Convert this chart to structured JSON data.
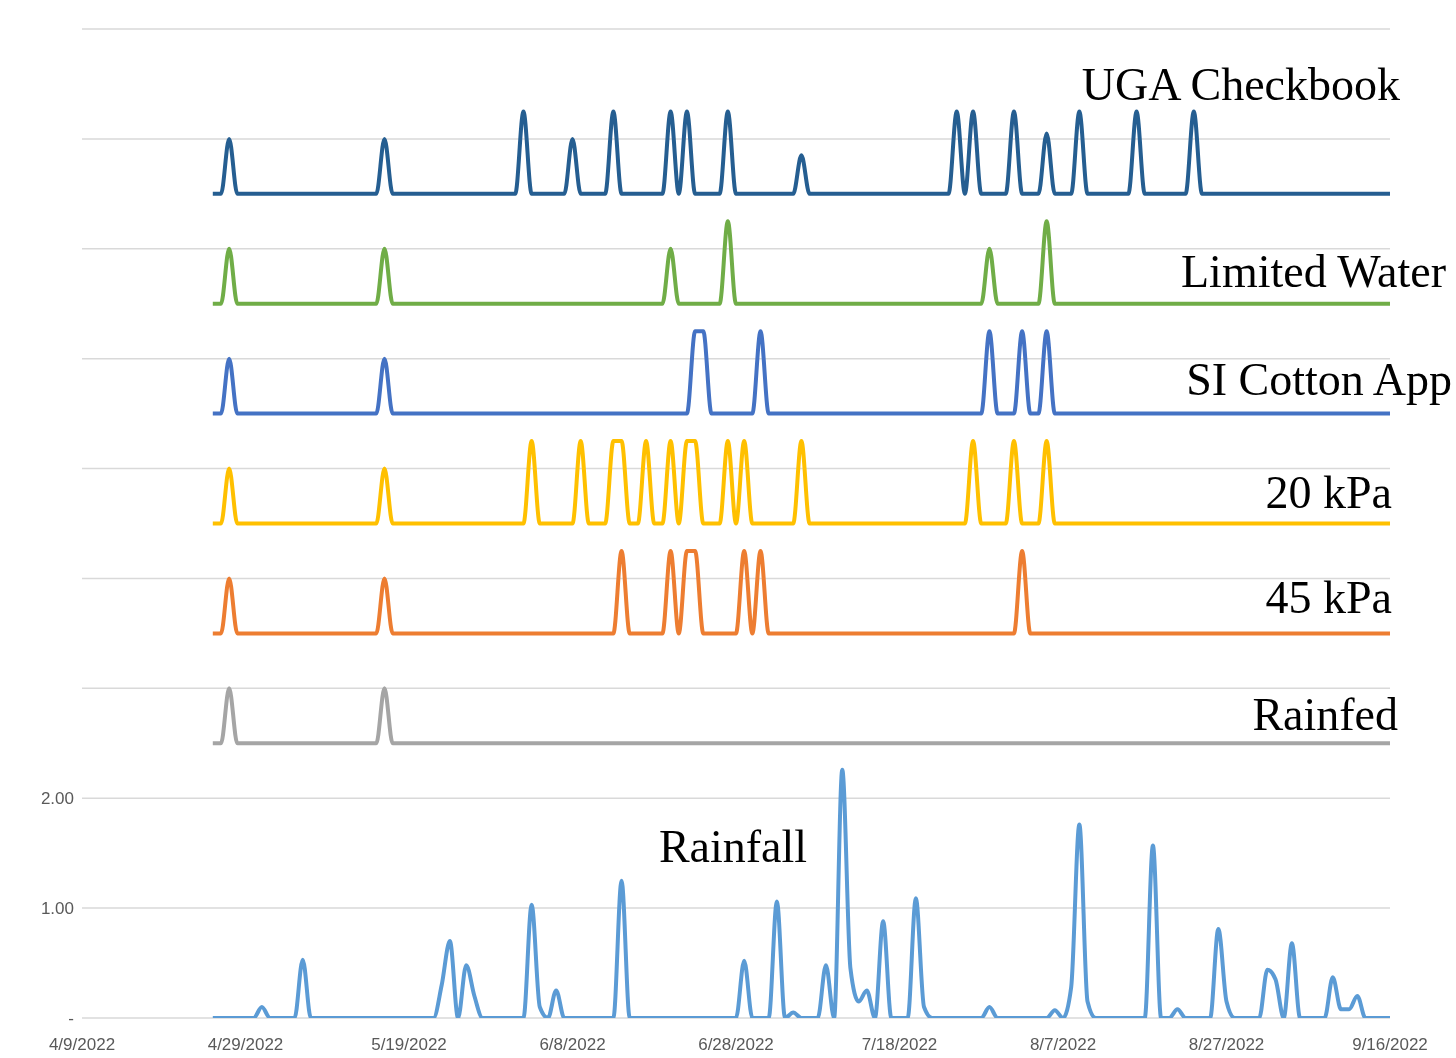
{
  "chart_data": {
    "type": "line",
    "xlim": [
      "2022-04-09",
      "2022-09-16"
    ],
    "xticks": [
      {
        "value": "2022-04-09",
        "label": "4/9/2022"
      },
      {
        "value": "2022-04-29",
        "label": "4/29/2022"
      },
      {
        "value": "2022-05-19",
        "label": "5/19/2022"
      },
      {
        "value": "2022-06-08",
        "label": "6/8/2022"
      },
      {
        "value": "2022-06-28",
        "label": "6/28/2022"
      },
      {
        "value": "2022-07-18",
        "label": "7/18/2022"
      },
      {
        "value": "2022-08-07",
        "label": "8/7/2022"
      },
      {
        "value": "2022-08-27",
        "label": "8/27/2022"
      },
      {
        "value": "2022-09-16",
        "label": "9/16/2022"
      }
    ],
    "ylim": [
      0,
      9
    ],
    "yticks": [
      {
        "value": 0,
        "label": "-"
      },
      {
        "value": 1,
        "label": "1.00"
      },
      {
        "value": 2,
        "label": "2.00"
      },
      {
        "value": 3,
        "label": null
      },
      {
        "value": 4,
        "label": null
      },
      {
        "value": 5,
        "label": null
      },
      {
        "value": 6,
        "label": null
      },
      {
        "value": 7,
        "label": null
      },
      {
        "value": 8,
        "label": null
      },
      {
        "value": 9,
        "label": null
      }
    ],
    "grid": "y",
    "marker": "none",
    "line_style": "solid",
    "series": [
      {
        "name": "UGA Checkbook",
        "color": "#255e91",
        "x": [
          "2022-04-25",
          "2022-04-26",
          "2022-04-27",
          "2022-04-28",
          "2022-05-15",
          "2022-05-16",
          "2022-05-17",
          "2022-06-01",
          "2022-06-02",
          "2022-06-03",
          "2022-06-07",
          "2022-06-08",
          "2022-06-09",
          "2022-06-12",
          "2022-06-13",
          "2022-06-14",
          "2022-06-19",
          "2022-06-20",
          "2022-06-21",
          "2022-06-22",
          "2022-06-23",
          "2022-06-26",
          "2022-06-27",
          "2022-06-28",
          "2022-07-05",
          "2022-07-06",
          "2022-07-07",
          "2022-07-24",
          "2022-07-25",
          "2022-07-26",
          "2022-07-27",
          "2022-07-28",
          "2022-07-31",
          "2022-08-01",
          "2022-08-02",
          "2022-08-04",
          "2022-08-05",
          "2022-08-06",
          "2022-08-08",
          "2022-08-09",
          "2022-08-10",
          "2022-08-15",
          "2022-08-16",
          "2022-08-17",
          "2022-08-22",
          "2022-08-23",
          "2022-08-24",
          "2022-09-16"
        ],
        "values": [
          7.5,
          7.5,
          8.0,
          7.5,
          7.5,
          8.0,
          7.5,
          7.5,
          8.25,
          7.5,
          7.5,
          8.0,
          7.5,
          7.5,
          8.25,
          7.5,
          7.5,
          8.25,
          7.5,
          8.25,
          7.5,
          7.5,
          8.25,
          7.5,
          7.5,
          7.85,
          7.5,
          7.5,
          8.25,
          7.5,
          8.25,
          7.5,
          7.5,
          8.25,
          7.5,
          7.5,
          8.05,
          7.5,
          7.5,
          8.25,
          7.5,
          7.5,
          8.25,
          7.5,
          7.5,
          8.25,
          7.5,
          7.5
        ]
      },
      {
        "name": "Limited Water",
        "color": "#70ad47",
        "x": [
          "2022-04-25",
          "2022-04-26",
          "2022-04-27",
          "2022-04-28",
          "2022-05-15",
          "2022-05-16",
          "2022-05-17",
          "2022-06-19",
          "2022-06-20",
          "2022-06-21",
          "2022-06-26",
          "2022-06-27",
          "2022-06-28",
          "2022-07-28",
          "2022-07-29",
          "2022-07-30",
          "2022-08-04",
          "2022-08-05",
          "2022-08-06",
          "2022-09-16"
        ],
        "values": [
          6.5,
          6.5,
          7.0,
          6.5,
          6.5,
          7.0,
          6.5,
          6.5,
          7.0,
          6.5,
          6.5,
          7.25,
          6.5,
          6.5,
          7.0,
          6.5,
          6.5,
          7.25,
          6.5,
          6.5
        ]
      },
      {
        "name": "SI Cotton App",
        "color": "#4472c4",
        "x": [
          "2022-04-25",
          "2022-04-26",
          "2022-04-27",
          "2022-04-28",
          "2022-05-15",
          "2022-05-16",
          "2022-05-17",
          "2022-06-22",
          "2022-06-23",
          "2022-06-24",
          "2022-06-25",
          "2022-06-30",
          "2022-07-01",
          "2022-07-02",
          "2022-07-28",
          "2022-07-29",
          "2022-07-30",
          "2022-08-01",
          "2022-08-02",
          "2022-08-03",
          "2022-08-04",
          "2022-08-05",
          "2022-08-06",
          "2022-09-16"
        ],
        "values": [
          5.5,
          5.5,
          6.0,
          5.5,
          5.5,
          6.0,
          5.5,
          5.5,
          6.25,
          6.25,
          5.5,
          5.5,
          6.25,
          5.5,
          5.5,
          6.25,
          5.5,
          5.5,
          6.25,
          5.5,
          5.5,
          6.25,
          5.5,
          5.5
        ]
      },
      {
        "name": "20 kPa",
        "color": "#ffc000",
        "x": [
          "2022-04-25",
          "2022-04-26",
          "2022-04-27",
          "2022-04-28",
          "2022-05-15",
          "2022-05-16",
          "2022-05-17",
          "2022-06-02",
          "2022-06-03",
          "2022-06-04",
          "2022-06-08",
          "2022-06-09",
          "2022-06-10",
          "2022-06-12",
          "2022-06-13",
          "2022-06-14",
          "2022-06-15",
          "2022-06-16",
          "2022-06-17",
          "2022-06-18",
          "2022-06-19",
          "2022-06-20",
          "2022-06-21",
          "2022-06-22",
          "2022-06-23",
          "2022-06-24",
          "2022-06-26",
          "2022-06-27",
          "2022-06-28",
          "2022-06-29",
          "2022-06-30",
          "2022-07-05",
          "2022-07-06",
          "2022-07-07",
          "2022-07-26",
          "2022-07-27",
          "2022-07-28",
          "2022-07-31",
          "2022-08-01",
          "2022-08-02",
          "2022-08-04",
          "2022-08-05",
          "2022-08-06",
          "2022-09-16"
        ],
        "values": [
          4.5,
          4.5,
          5.0,
          4.5,
          4.5,
          5.0,
          4.5,
          4.5,
          5.25,
          4.5,
          4.5,
          5.25,
          4.5,
          4.5,
          5.25,
          5.25,
          4.5,
          4.5,
          5.25,
          4.5,
          4.5,
          5.25,
          4.5,
          5.25,
          5.25,
          4.5,
          4.5,
          5.25,
          4.5,
          5.25,
          4.5,
          4.5,
          5.25,
          4.5,
          4.5,
          5.25,
          4.5,
          4.5,
          5.25,
          4.5,
          4.5,
          5.25,
          4.5,
          4.5
        ]
      },
      {
        "name": "45 kPa",
        "color": "#ed7d31",
        "x": [
          "2022-04-25",
          "2022-04-26",
          "2022-04-27",
          "2022-04-28",
          "2022-05-15",
          "2022-05-16",
          "2022-05-17",
          "2022-06-13",
          "2022-06-14",
          "2022-06-15",
          "2022-06-19",
          "2022-06-20",
          "2022-06-21",
          "2022-06-22",
          "2022-06-23",
          "2022-06-24",
          "2022-06-28",
          "2022-06-29",
          "2022-06-30",
          "2022-07-01",
          "2022-07-02",
          "2022-08-01",
          "2022-08-02",
          "2022-08-03",
          "2022-09-16"
        ],
        "values": [
          3.5,
          3.5,
          4.0,
          3.5,
          3.5,
          4.0,
          3.5,
          3.5,
          4.25,
          3.5,
          3.5,
          4.25,
          3.5,
          4.25,
          4.25,
          3.5,
          3.5,
          4.25,
          3.5,
          4.25,
          3.5,
          3.5,
          4.25,
          3.5,
          3.5
        ]
      },
      {
        "name": "Rainfed",
        "color": "#a5a5a5",
        "x": [
          "2022-04-25",
          "2022-04-26",
          "2022-04-27",
          "2022-04-28",
          "2022-05-15",
          "2022-05-16",
          "2022-05-17",
          "2022-09-16"
        ],
        "values": [
          2.5,
          2.5,
          3.0,
          2.5,
          2.5,
          3.0,
          2.5,
          2.5
        ]
      },
      {
        "name": "Rainfall",
        "color": "#5b9bd5",
        "x": [
          "2022-04-25",
          "2022-04-30",
          "2022-05-01",
          "2022-05-02",
          "2022-05-05",
          "2022-05-06",
          "2022-05-07",
          "2022-05-22",
          "2022-05-23",
          "2022-05-24",
          "2022-05-25",
          "2022-05-26",
          "2022-05-27",
          "2022-05-28",
          "2022-06-02",
          "2022-06-03",
          "2022-06-04",
          "2022-06-05",
          "2022-06-06",
          "2022-06-07",
          "2022-06-13",
          "2022-06-14",
          "2022-06-15",
          "2022-06-28",
          "2022-06-29",
          "2022-06-30",
          "2022-07-02",
          "2022-07-03",
          "2022-07-04",
          "2022-07-05",
          "2022-07-06",
          "2022-07-08",
          "2022-07-09",
          "2022-07-10",
          "2022-07-11",
          "2022-07-12",
          "2022-07-13",
          "2022-07-14",
          "2022-07-15",
          "2022-07-16",
          "2022-07-17",
          "2022-07-19",
          "2022-07-20",
          "2022-07-21",
          "2022-07-22",
          "2022-07-28",
          "2022-07-29",
          "2022-07-30",
          "2022-08-05",
          "2022-08-06",
          "2022-08-07",
          "2022-08-08",
          "2022-08-09",
          "2022-08-10",
          "2022-08-11",
          "2022-08-17",
          "2022-08-18",
          "2022-08-19",
          "2022-08-20",
          "2022-08-21",
          "2022-08-22",
          "2022-08-25",
          "2022-08-26",
          "2022-08-27",
          "2022-08-28",
          "2022-08-31",
          "2022-09-01",
          "2022-09-02",
          "2022-09-03",
          "2022-09-04",
          "2022-09-05",
          "2022-09-08",
          "2022-09-09",
          "2022-09-10",
          "2022-09-11",
          "2022-09-12",
          "2022-09-13",
          "2022-09-16"
        ],
        "values": [
          0,
          0,
          0.1,
          0,
          0,
          0.53,
          0,
          0,
          0.3,
          0.7,
          0,
          0.48,
          0.2,
          0,
          0,
          1.03,
          0.1,
          0,
          0.25,
          0,
          0,
          1.25,
          0,
          0,
          0.52,
          0,
          0,
          1.06,
          0,
          0.05,
          0,
          0,
          0.48,
          0,
          2.26,
          0.45,
          0.15,
          0.25,
          0,
          0.88,
          0,
          0,
          1.09,
          0.1,
          0,
          0,
          0.1,
          0,
          0,
          0.07,
          0,
          0.28,
          1.76,
          0.15,
          0,
          0,
          1.57,
          0,
          0,
          0.08,
          0,
          0,
          0.81,
          0.15,
          0,
          0,
          0.44,
          0.35,
          0,
          0.68,
          0,
          0,
          0.37,
          0.08,
          0.08,
          0.2,
          0,
          0
        ]
      }
    ]
  }
}
